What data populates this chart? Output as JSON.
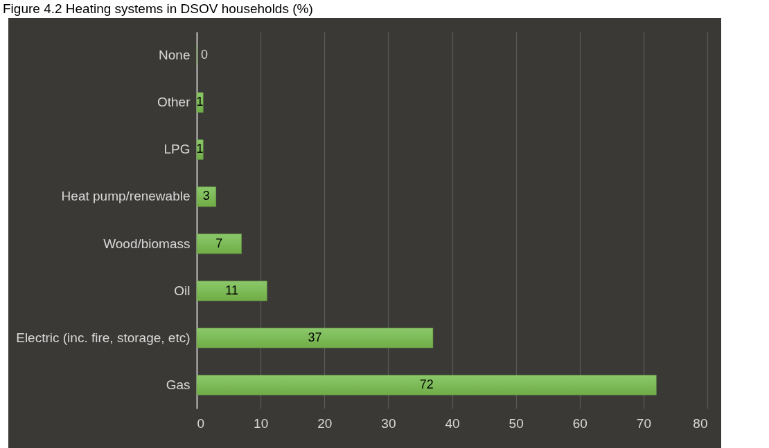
{
  "chart_data": {
    "type": "bar",
    "orientation": "horizontal",
    "title": "Figure 4.2 Heating systems in DSOV households (%)",
    "categories": [
      "None",
      "Other",
      "LPG",
      "Heat pump/renewable",
      "Wood/biomass",
      "Oil",
      "Electric (inc. fire, storage, etc)",
      "Gas"
    ],
    "values": [
      0,
      1,
      1,
      3,
      7,
      11,
      37,
      72
    ],
    "color": "#70ad47",
    "xlim": [
      0,
      80
    ],
    "xticks": [
      0,
      10,
      20,
      30,
      40,
      50,
      60,
      70,
      80
    ],
    "grid": "x",
    "data_labels": true
  }
}
